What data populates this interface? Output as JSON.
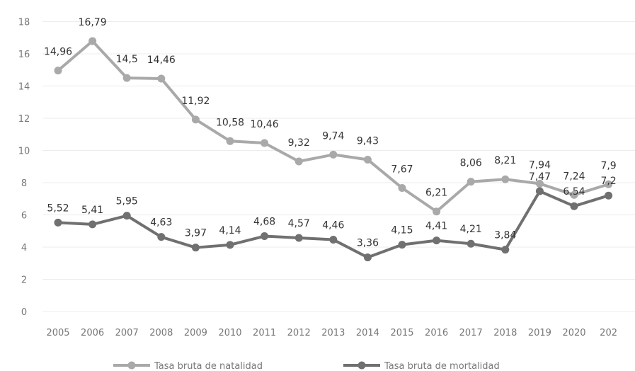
{
  "chart_data": {
    "type": "line",
    "x": [
      "2005",
      "2006",
      "2007",
      "2008",
      "2009",
      "2010",
      "2011",
      "2012",
      "2013",
      "2014",
      "2015",
      "2016",
      "2017",
      "2018",
      "2019",
      "2020",
      "202"
    ],
    "y_ticks": [
      "0",
      "2",
      "4",
      "6",
      "8",
      "10",
      "12",
      "14",
      "16",
      "18"
    ],
    "ylim": [
      0,
      18
    ],
    "grid": true,
    "legend_position": "bottom",
    "series": [
      {
        "name": "Tasa bruta de natalidad",
        "color": "#a9a9a9",
        "values": [
          14.96,
          16.79,
          14.5,
          14.46,
          11.92,
          10.58,
          10.46,
          9.32,
          9.74,
          9.43,
          7.67,
          6.21,
          8.06,
          8.21,
          7.94,
          7.24,
          7.9
        ],
        "labels": [
          "14,96",
          "16,79",
          "14,5",
          "14,46",
          "11,92",
          "10,58",
          "10,46",
          "9,32",
          "9,74",
          "9,43",
          "7,67",
          "6,21",
          "8,06",
          "8,21",
          "7,94",
          "7,24",
          "7,9"
        ]
      },
      {
        "name": "Tasa bruta de mortalidad",
        "color": "#707070",
        "values": [
          5.52,
          5.41,
          5.95,
          4.63,
          3.97,
          4.14,
          4.68,
          4.57,
          4.46,
          3.36,
          4.15,
          4.41,
          4.21,
          3.84,
          7.47,
          6.54,
          7.2
        ],
        "labels": [
          "5,52",
          "5,41",
          "5,95",
          "4,63",
          "3,97",
          "4,14",
          "4,68",
          "4,57",
          "4,46",
          "3,36",
          "4,15",
          "4,41",
          "4,21",
          "3,84",
          "7,47",
          "6,54",
          "7,2"
        ]
      }
    ]
  }
}
